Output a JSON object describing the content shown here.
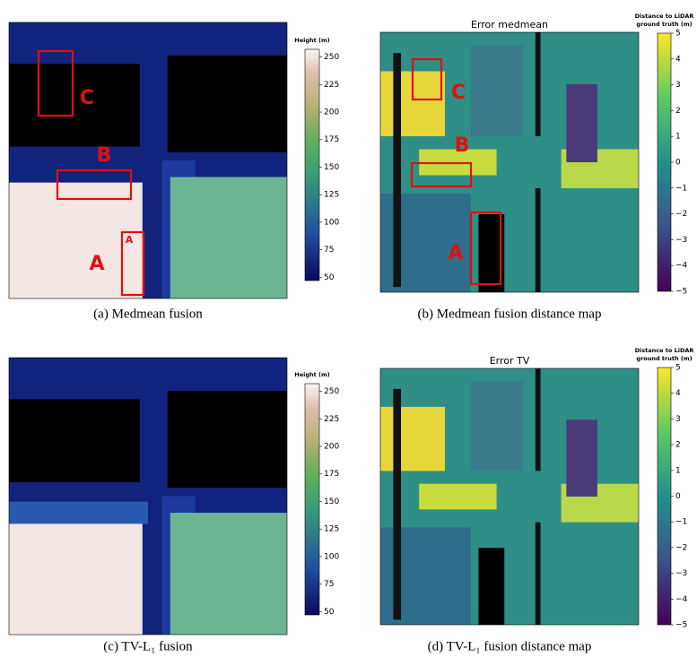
{
  "panels": [
    {
      "caption": "(a) Medmean fusion",
      "colorbar": {
        "label": [
          "Height (m)"
        ],
        "range": [
          47,
          257
        ],
        "ticks": [
          50,
          75,
          100,
          125,
          150,
          175,
          200,
          225,
          250
        ]
      },
      "annotations": [
        {
          "label": "C"
        },
        {
          "label": "B"
        },
        {
          "label": "A"
        },
        {
          "label": "A"
        }
      ]
    },
    {
      "title": "Error medmean",
      "caption": "(b) Medmean fusion distance map",
      "colorbar": {
        "label": [
          "Distance to LiDAR",
          "ground truth (m)"
        ],
        "range": [
          -5,
          5
        ],
        "ticks": [
          5,
          4,
          3,
          2,
          1,
          0,
          {
            "value": -1,
            "label": "−1"
          },
          {
            "value": -2,
            "label": "−2"
          },
          {
            "value": -3,
            "label": "−3"
          },
          {
            "value": -4,
            "label": "−4"
          },
          {
            "value": -5,
            "label": "−5"
          }
        ]
      },
      "annotations": [
        {
          "label": "C"
        },
        {
          "label": "B"
        },
        {
          "label": "A"
        }
      ]
    },
    {
      "caption": "(c) TV-L₁ fusion",
      "colorbar": {
        "label": [
          "Height (m)"
        ],
        "range": [
          47,
          257
        ],
        "ticks": [
          50,
          75,
          100,
          125,
          150,
          175,
          200,
          225,
          250
        ]
      },
      "annotations": []
    },
    {
      "title": "Error TV",
      "caption": "(d) TV-L₁ fusion distance map",
      "colorbar": {
        "label": [
          "Distance to LiDAR",
          "ground truth (m)"
        ],
        "range": [
          -5,
          5
        ],
        "ticks": [
          5,
          4,
          3,
          2,
          1,
          0,
          {
            "value": -1,
            "label": "−1"
          },
          {
            "value": -2,
            "label": "−2"
          },
          {
            "value": -3,
            "label": "−3"
          },
          {
            "value": -4,
            "label": "−4"
          },
          {
            "value": -5,
            "label": "−5"
          }
        ]
      },
      "annotations": []
    }
  ]
}
